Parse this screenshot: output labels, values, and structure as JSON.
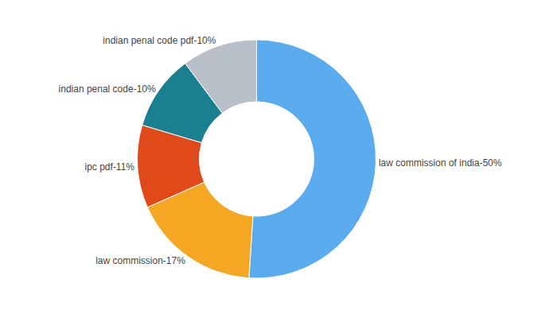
{
  "chart_data": {
    "type": "donut",
    "categories": [
      "law commission of india-50%",
      "law commission-17%",
      "ipc pdf-11%",
      "indian penal code-10%",
      "indian penal code pdf-10%"
    ],
    "values": [
      50,
      17,
      11,
      10,
      10
    ],
    "colors": [
      "#5aacee",
      "#f5a623",
      "#e04a1a",
      "#1a7f8e",
      "#b8bfc8"
    ],
    "data_labels": true,
    "legend": false
  }
}
